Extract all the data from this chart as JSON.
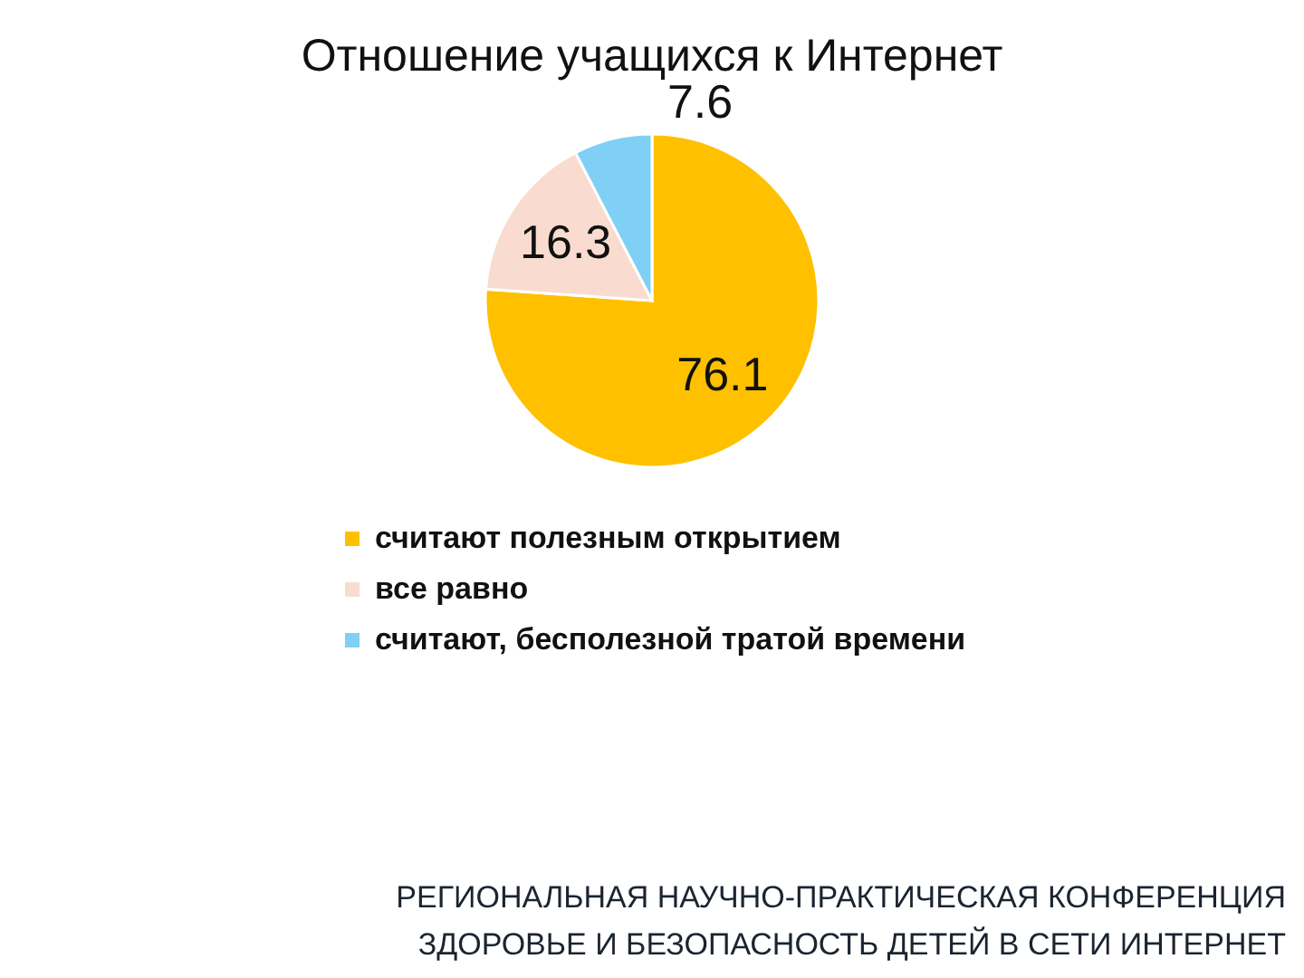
{
  "chart_data": {
    "type": "pie",
    "title": "Отношение учащихся к Интернет",
    "categories": [
      "считают полезным открытием",
      "все равно",
      "считают, бесполезной тратой времени"
    ],
    "values": [
      76.1,
      16.3,
      7.6
    ],
    "colors": [
      "#ffc000",
      "#f9dccf",
      "#7fd0f4"
    ],
    "data_labels": true,
    "legend": "bottom",
    "annotations": [
      "РЕГИОНАЛЬНАЯ НАУЧНО-ПРАКТИЧЕСКАЯ КОНФЕРЕНЦИЯ",
      "ЗДОРОВЬЕ И БЕЗОПАСНОСТЬ ДЕТЕЙ В СЕТИ ИНТЕРНЕТ"
    ]
  }
}
